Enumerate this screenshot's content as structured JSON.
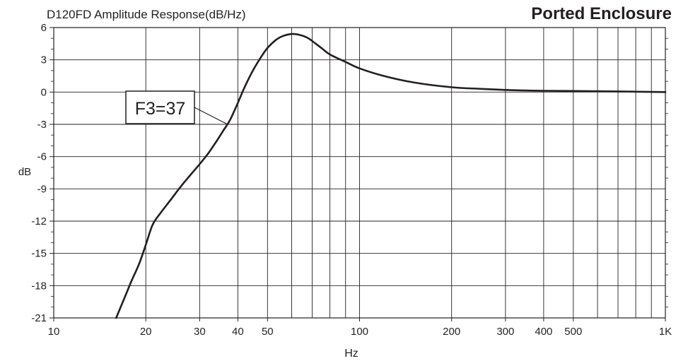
{
  "chart_data": {
    "type": "line",
    "title": "D120FD  Amplitude Response(dB/Hz)",
    "subtitle": "Ported Enclosure",
    "xlabel": "Hz",
    "ylabel": "dB",
    "xscale": "log",
    "xlim": [
      10,
      1000
    ],
    "ylim": [
      -21,
      6
    ],
    "grid": true,
    "x_ticks": [
      {
        "value": 10,
        "label": "10"
      },
      {
        "value": 20,
        "label": "20"
      },
      {
        "value": 30,
        "label": "30"
      },
      {
        "value": 40,
        "label": "40"
      },
      {
        "value": 50,
        "label": "50"
      },
      {
        "value": 100,
        "label": "100"
      },
      {
        "value": 200,
        "label": "200"
      },
      {
        "value": 300,
        "label": "300"
      },
      {
        "value": 400,
        "label": "400"
      },
      {
        "value": 500,
        "label": "500"
      },
      {
        "value": 1000,
        "label": "1K"
      }
    ],
    "y_ticks": [
      {
        "value": 6,
        "label": "6"
      },
      {
        "value": 3,
        "label": "3"
      },
      {
        "value": 0,
        "label": "0"
      },
      {
        "value": -3,
        "label": "-3"
      },
      {
        "value": -6,
        "label": "-6"
      },
      {
        "value": -9,
        "label": "-9"
      },
      {
        "value": -12,
        "label": "-12"
      },
      {
        "value": -15,
        "label": "-15"
      },
      {
        "value": -18,
        "label": "-18"
      },
      {
        "value": -21,
        "label": "-21"
      }
    ],
    "series": [
      {
        "x": [
          16,
          17,
          18,
          19,
          20,
          21,
          22,
          24,
          26,
          28,
          30,
          32,
          34,
          36,
          37,
          38,
          40,
          42,
          45,
          48,
          50,
          53,
          56,
          60,
          63,
          67,
          70,
          75,
          80,
          90,
          100,
          120,
          150,
          200,
          250,
          300,
          350,
          400,
          500,
          700,
          1000
        ],
        "y": [
          -21,
          -19.2,
          -17.5,
          -16,
          -14.2,
          -12.4,
          -11.5,
          -10.1,
          -8.8,
          -7.7,
          -6.7,
          -5.7,
          -4.6,
          -3.5,
          -3.0,
          -2.4,
          -1.0,
          0.4,
          2.1,
          3.4,
          4.1,
          4.8,
          5.2,
          5.4,
          5.35,
          5.1,
          4.75,
          4.1,
          3.5,
          2.8,
          2.2,
          1.5,
          0.9,
          0.45,
          0.3,
          0.2,
          0.15,
          0.12,
          0.1,
          0.06,
          0.0
        ],
        "color": "#231f20"
      }
    ],
    "annotations": [
      {
        "text": "F3=37",
        "x": 37,
        "y": -3
      }
    ]
  }
}
